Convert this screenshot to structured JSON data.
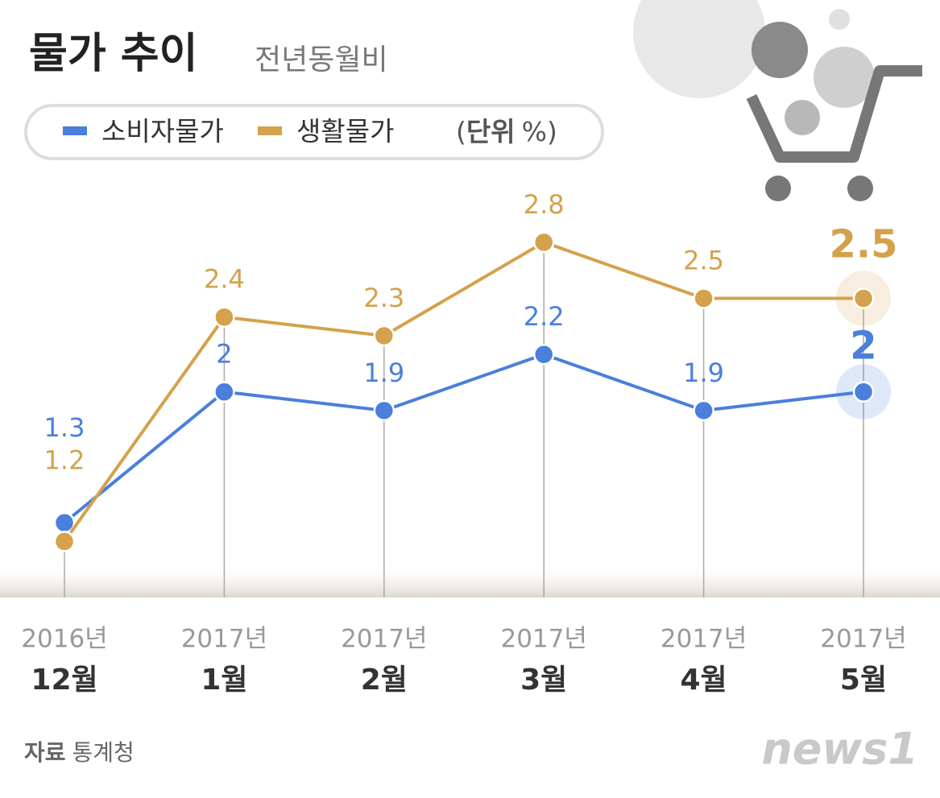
{
  "chart_data": {
    "type": "line",
    "title": "물가 추이",
    "subtitle": "전년동월비",
    "unit_label": "단위",
    "unit": "%",
    "source_label": "자료",
    "source": "통계청",
    "brand": "news1",
    "categories": [
      {
        "year": "2016년",
        "month": "12월"
      },
      {
        "year": "2017년",
        "month": "1월"
      },
      {
        "year": "2017년",
        "month": "2월"
      },
      {
        "year": "2017년",
        "month": "3월"
      },
      {
        "year": "2017년",
        "month": "4월"
      },
      {
        "year": "2017년",
        "month": "5월"
      }
    ],
    "series": [
      {
        "name": "소비자물가",
        "color": "#4a7fdc",
        "values": [
          1.3,
          2.0,
          1.9,
          2.2,
          1.9,
          2.0
        ]
      },
      {
        "name": "생활물가",
        "color": "#d4a24c",
        "values": [
          1.2,
          2.4,
          2.3,
          2.8,
          2.5,
          2.5
        ]
      }
    ],
    "ylim": [
      0.9,
      3.2
    ]
  }
}
